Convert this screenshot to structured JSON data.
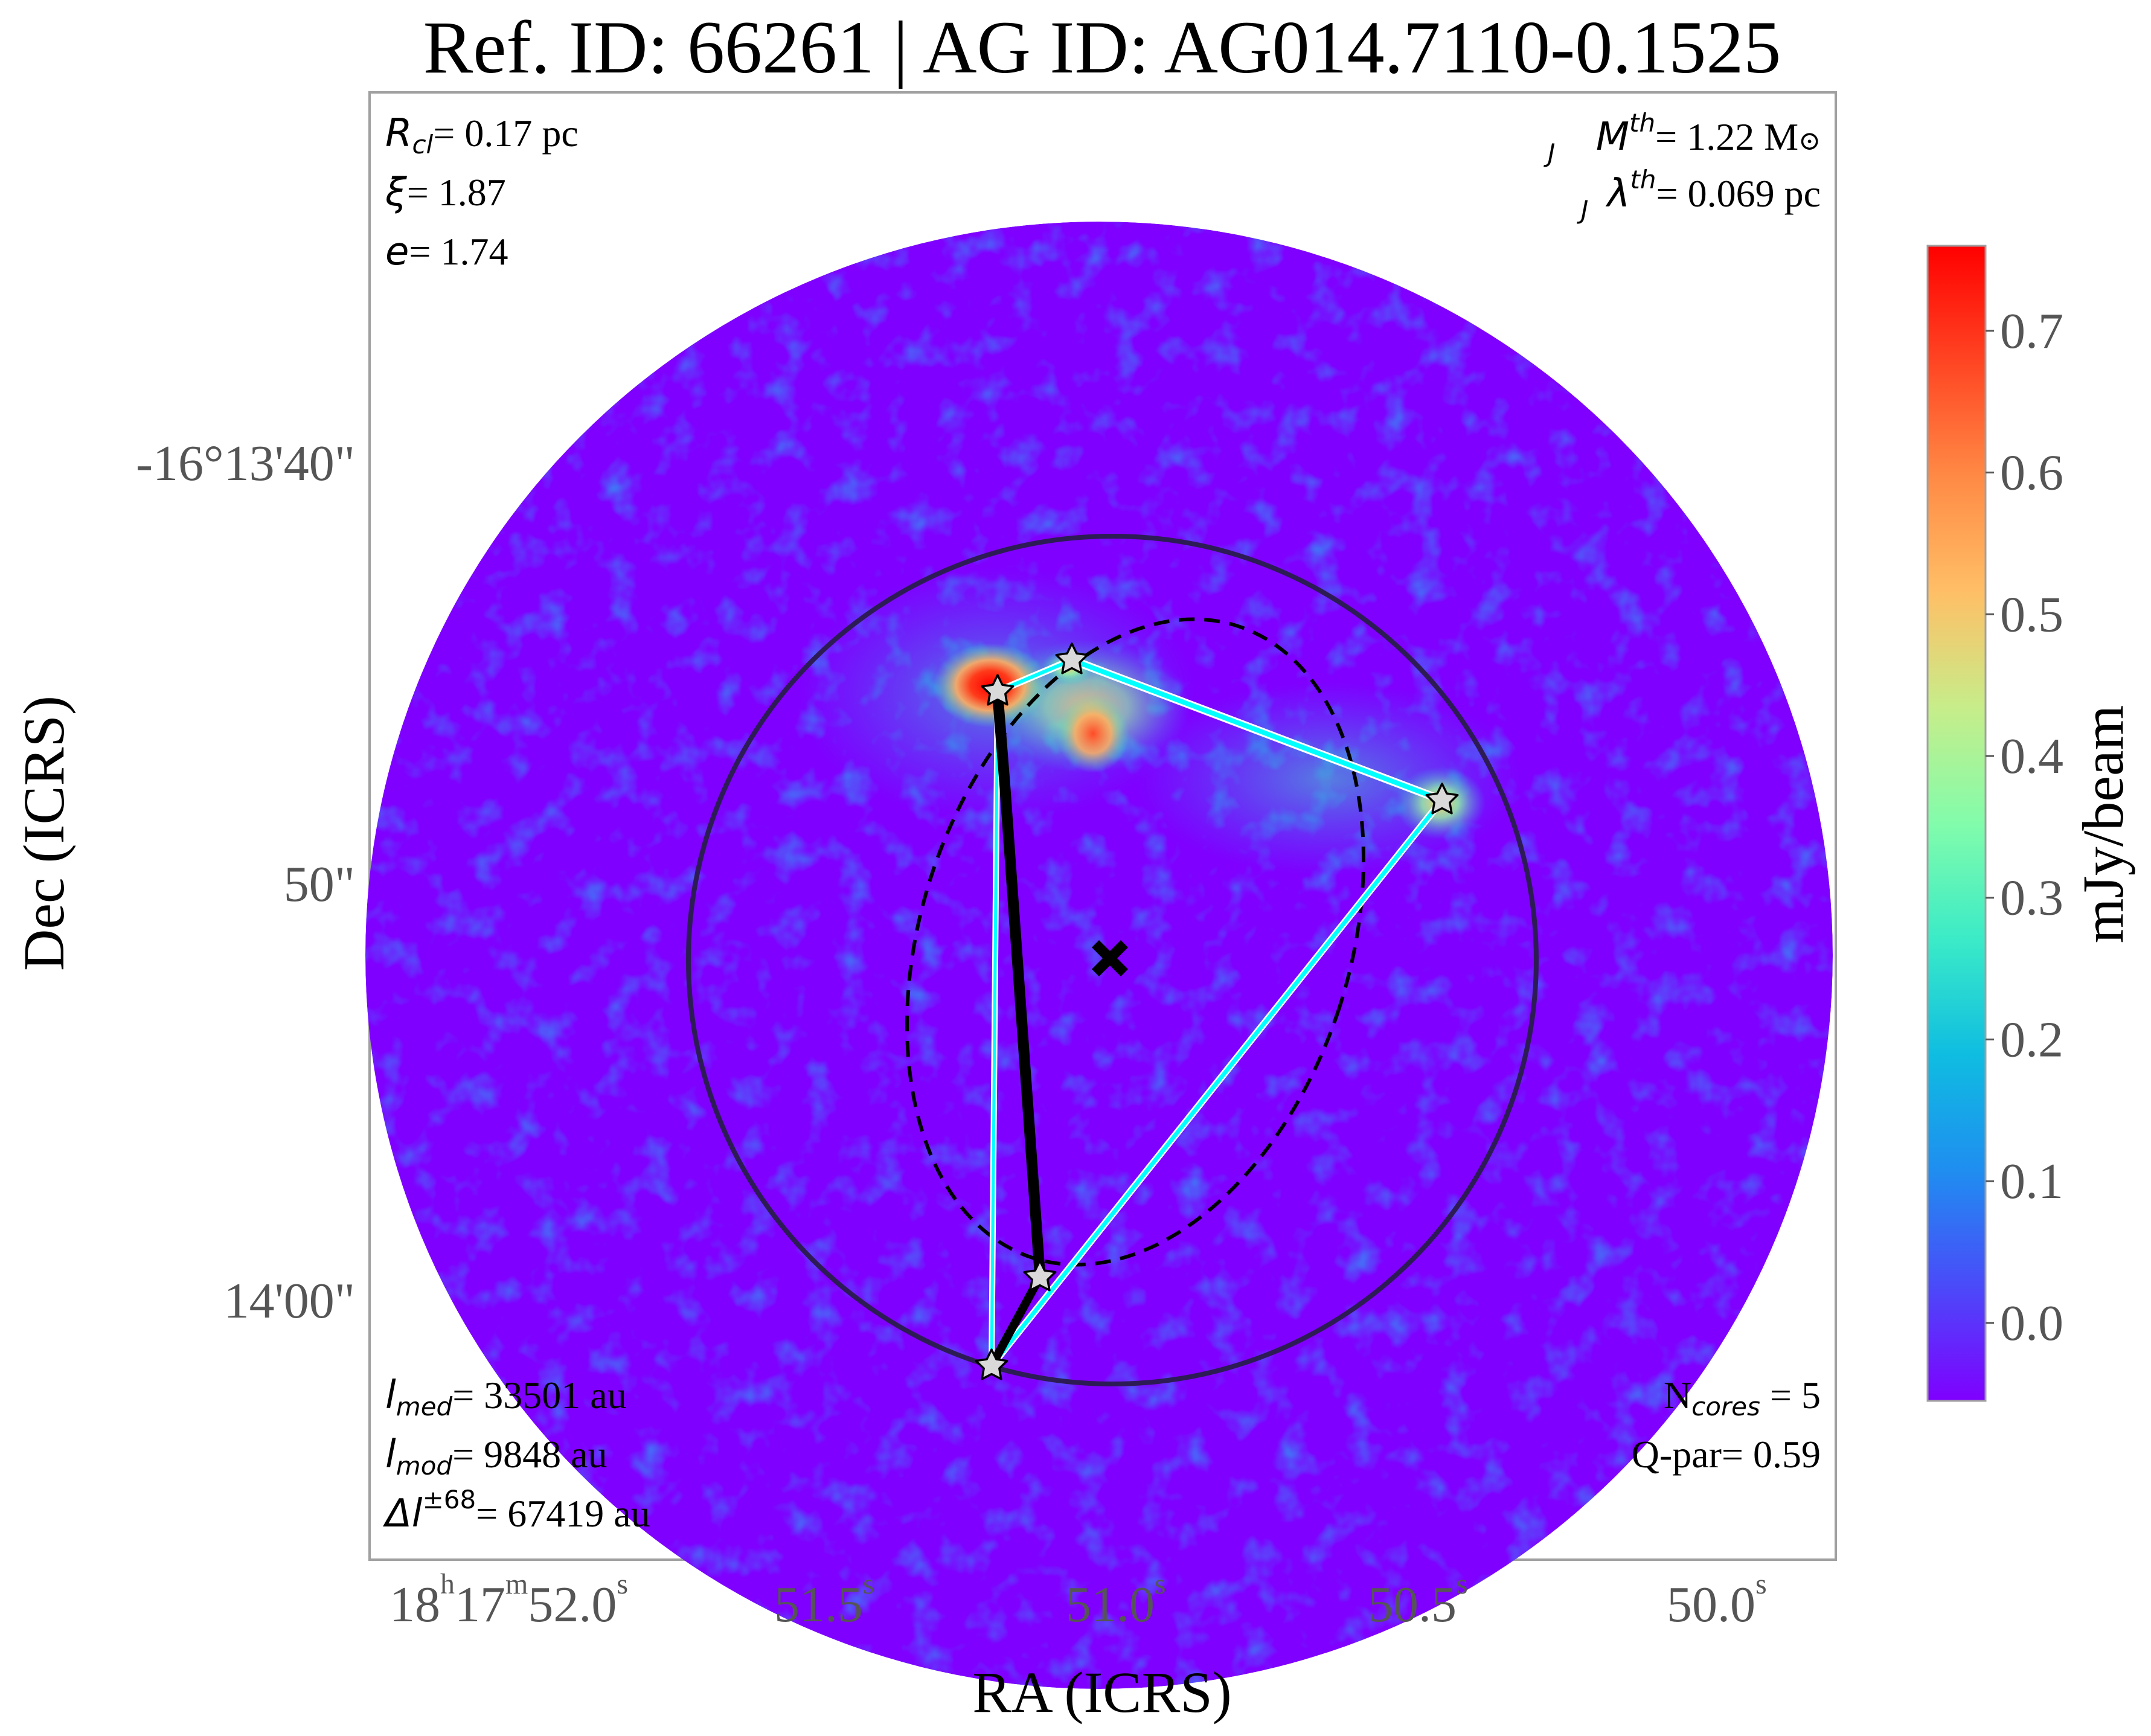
{
  "title": "Ref. ID: 66261 | AG ID: AG014.7110-0.1525",
  "axes": {
    "xlabel": "RA (ICRS)",
    "ylabel": "Dec (ICRS)",
    "x_ticks": [
      {
        "main": "18",
        "sup1": "h",
        "mid": "17",
        "sup2": "m",
        "end": "52.0",
        "sup3": "s"
      },
      {
        "main": "51.5",
        "sup": "s"
      },
      {
        "main": "51.0",
        "sup": "s"
      },
      {
        "main": "50.5",
        "sup": "s"
      },
      {
        "main": "50.0",
        "sup": "s"
      }
    ],
    "y_ticks": [
      "-16°13'40\"",
      "50\"",
      "14'00\""
    ]
  },
  "colorbar": {
    "label": "mJy/beam",
    "ticks": [
      "0.7",
      "0.6",
      "0.5",
      "0.4",
      "0.3",
      "0.2",
      "0.1",
      "0.0"
    ],
    "range": [
      -0.055,
      0.76
    ],
    "colormap": "rainbow"
  },
  "annotations": {
    "top_left": [
      {
        "sym": "R",
        "sub": "cl",
        "value": "= 0.17 pc"
      },
      {
        "sym": "ξ",
        "value": "= 1.87"
      },
      {
        "sym": "e",
        "value": "= 1.74"
      }
    ],
    "top_right": [
      {
        "sym": "M",
        "sup": "th",
        "sub": "J",
        "value": "= 1.22 M",
        "suffix": "⊙"
      },
      {
        "sym": "λ",
        "sup": "th",
        "sub": "J",
        "value": "= 0.069 pc"
      }
    ],
    "bottom_left": [
      {
        "sym": "l",
        "sub": "med",
        "value": "= 33501 au"
      },
      {
        "sym": "l",
        "sub": "mod",
        "value": "= 9848 au"
      },
      {
        "sym": "Δl",
        "sup": "±68",
        "value": "= 67419 au"
      }
    ],
    "bottom_right": [
      {
        "prefix": "N",
        "sub": "cores",
        "value": " = 5"
      },
      {
        "prefix": "Q-par",
        "value": "= 0.59"
      }
    ]
  },
  "colors": {
    "background": "#7f00ff",
    "mst_edge": "#00ffff",
    "heavy_edge": "#000000",
    "cluster_circle": "#2d1b55",
    "core_star": "#d9d9d9",
    "frame": "#a0a0a0"
  },
  "icons": [
    "star-icon",
    "cross-marker-icon"
  ]
}
